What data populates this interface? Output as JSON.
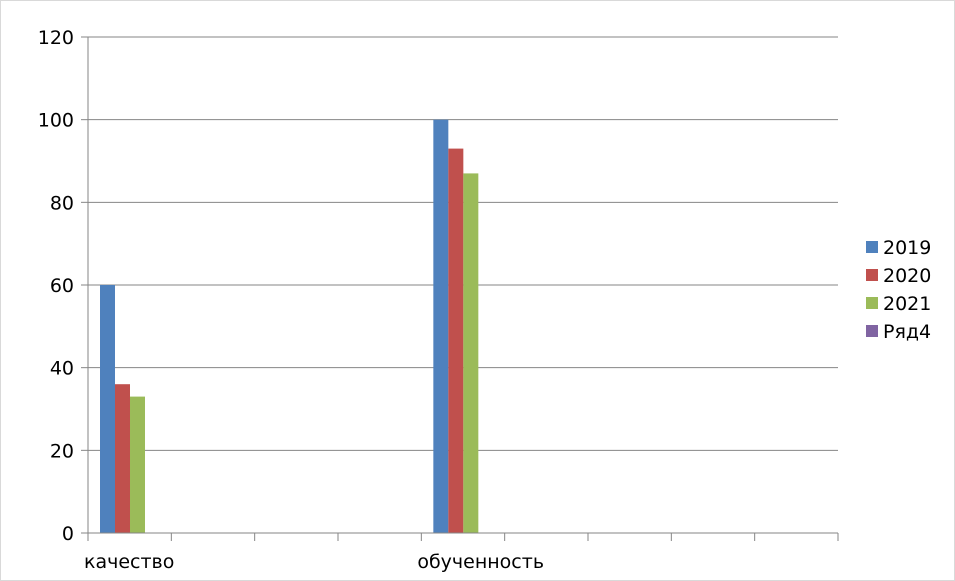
{
  "chart_data": {
    "type": "bar",
    "categories": [
      "качество",
      "",
      "",
      "",
      "обученность",
      "",
      "",
      "",
      ""
    ],
    "series": [
      {
        "name": "2019",
        "color": "#4F81BD",
        "values": [
          60,
          null,
          null,
          null,
          100,
          null,
          null,
          null,
          null
        ]
      },
      {
        "name": "2020",
        "color": "#C0504D",
        "values": [
          36,
          null,
          null,
          null,
          93,
          null,
          null,
          null,
          null
        ]
      },
      {
        "name": "2021",
        "color": "#9BBB59",
        "values": [
          33,
          null,
          null,
          null,
          87,
          null,
          null,
          null,
          null
        ]
      },
      {
        "name": "Ряд4",
        "color": "#8064A2",
        "values": [
          null,
          null,
          null,
          null,
          null,
          null,
          null,
          null,
          null
        ]
      }
    ],
    "ylim": [
      0,
      120
    ],
    "yticks": [
      0,
      20,
      40,
      60,
      80,
      100,
      120
    ],
    "grid": true,
    "legend": "right"
  }
}
